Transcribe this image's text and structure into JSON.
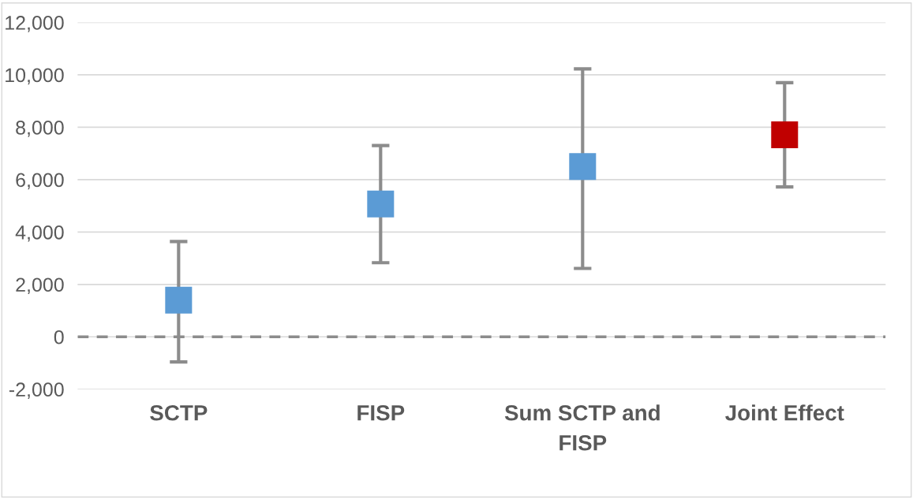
{
  "chart_data": {
    "type": "scatter",
    "categories": [
      "SCTP",
      "FISP",
      "Sum SCTP and FISP",
      "Joint Effect"
    ],
    "values": [
      1400,
      5070,
      6500,
      7710
    ],
    "colors": [
      "#5b9bd5",
      "#5b9bd5",
      "#5b9bd5",
      "#c00000"
    ],
    "errors": [
      [
        -960,
        3640
      ],
      [
        2830,
        7300
      ],
      [
        2610,
        10230
      ],
      [
        5720,
        9700
      ]
    ],
    "marker": "square",
    "ylim": [
      -2000,
      12000
    ],
    "yticks": [
      {
        "value": -2000,
        "label": "-2,000"
      },
      0,
      {
        "value": 2000,
        "label": "2,000"
      },
      {
        "value": 4000,
        "label": "4,000"
      },
      {
        "value": 6000,
        "label": "6,000"
      },
      {
        "value": 8000,
        "label": "8,000"
      },
      {
        "value": 10000,
        "label": "10,000"
      },
      {
        "value": 12000,
        "label": "12,000"
      }
    ],
    "grid": "y",
    "ref_lines": [
      {
        "axis": "y",
        "value": 0,
        "color": "#8c8c8c",
        "line_style": "dashed"
      }
    ]
  }
}
